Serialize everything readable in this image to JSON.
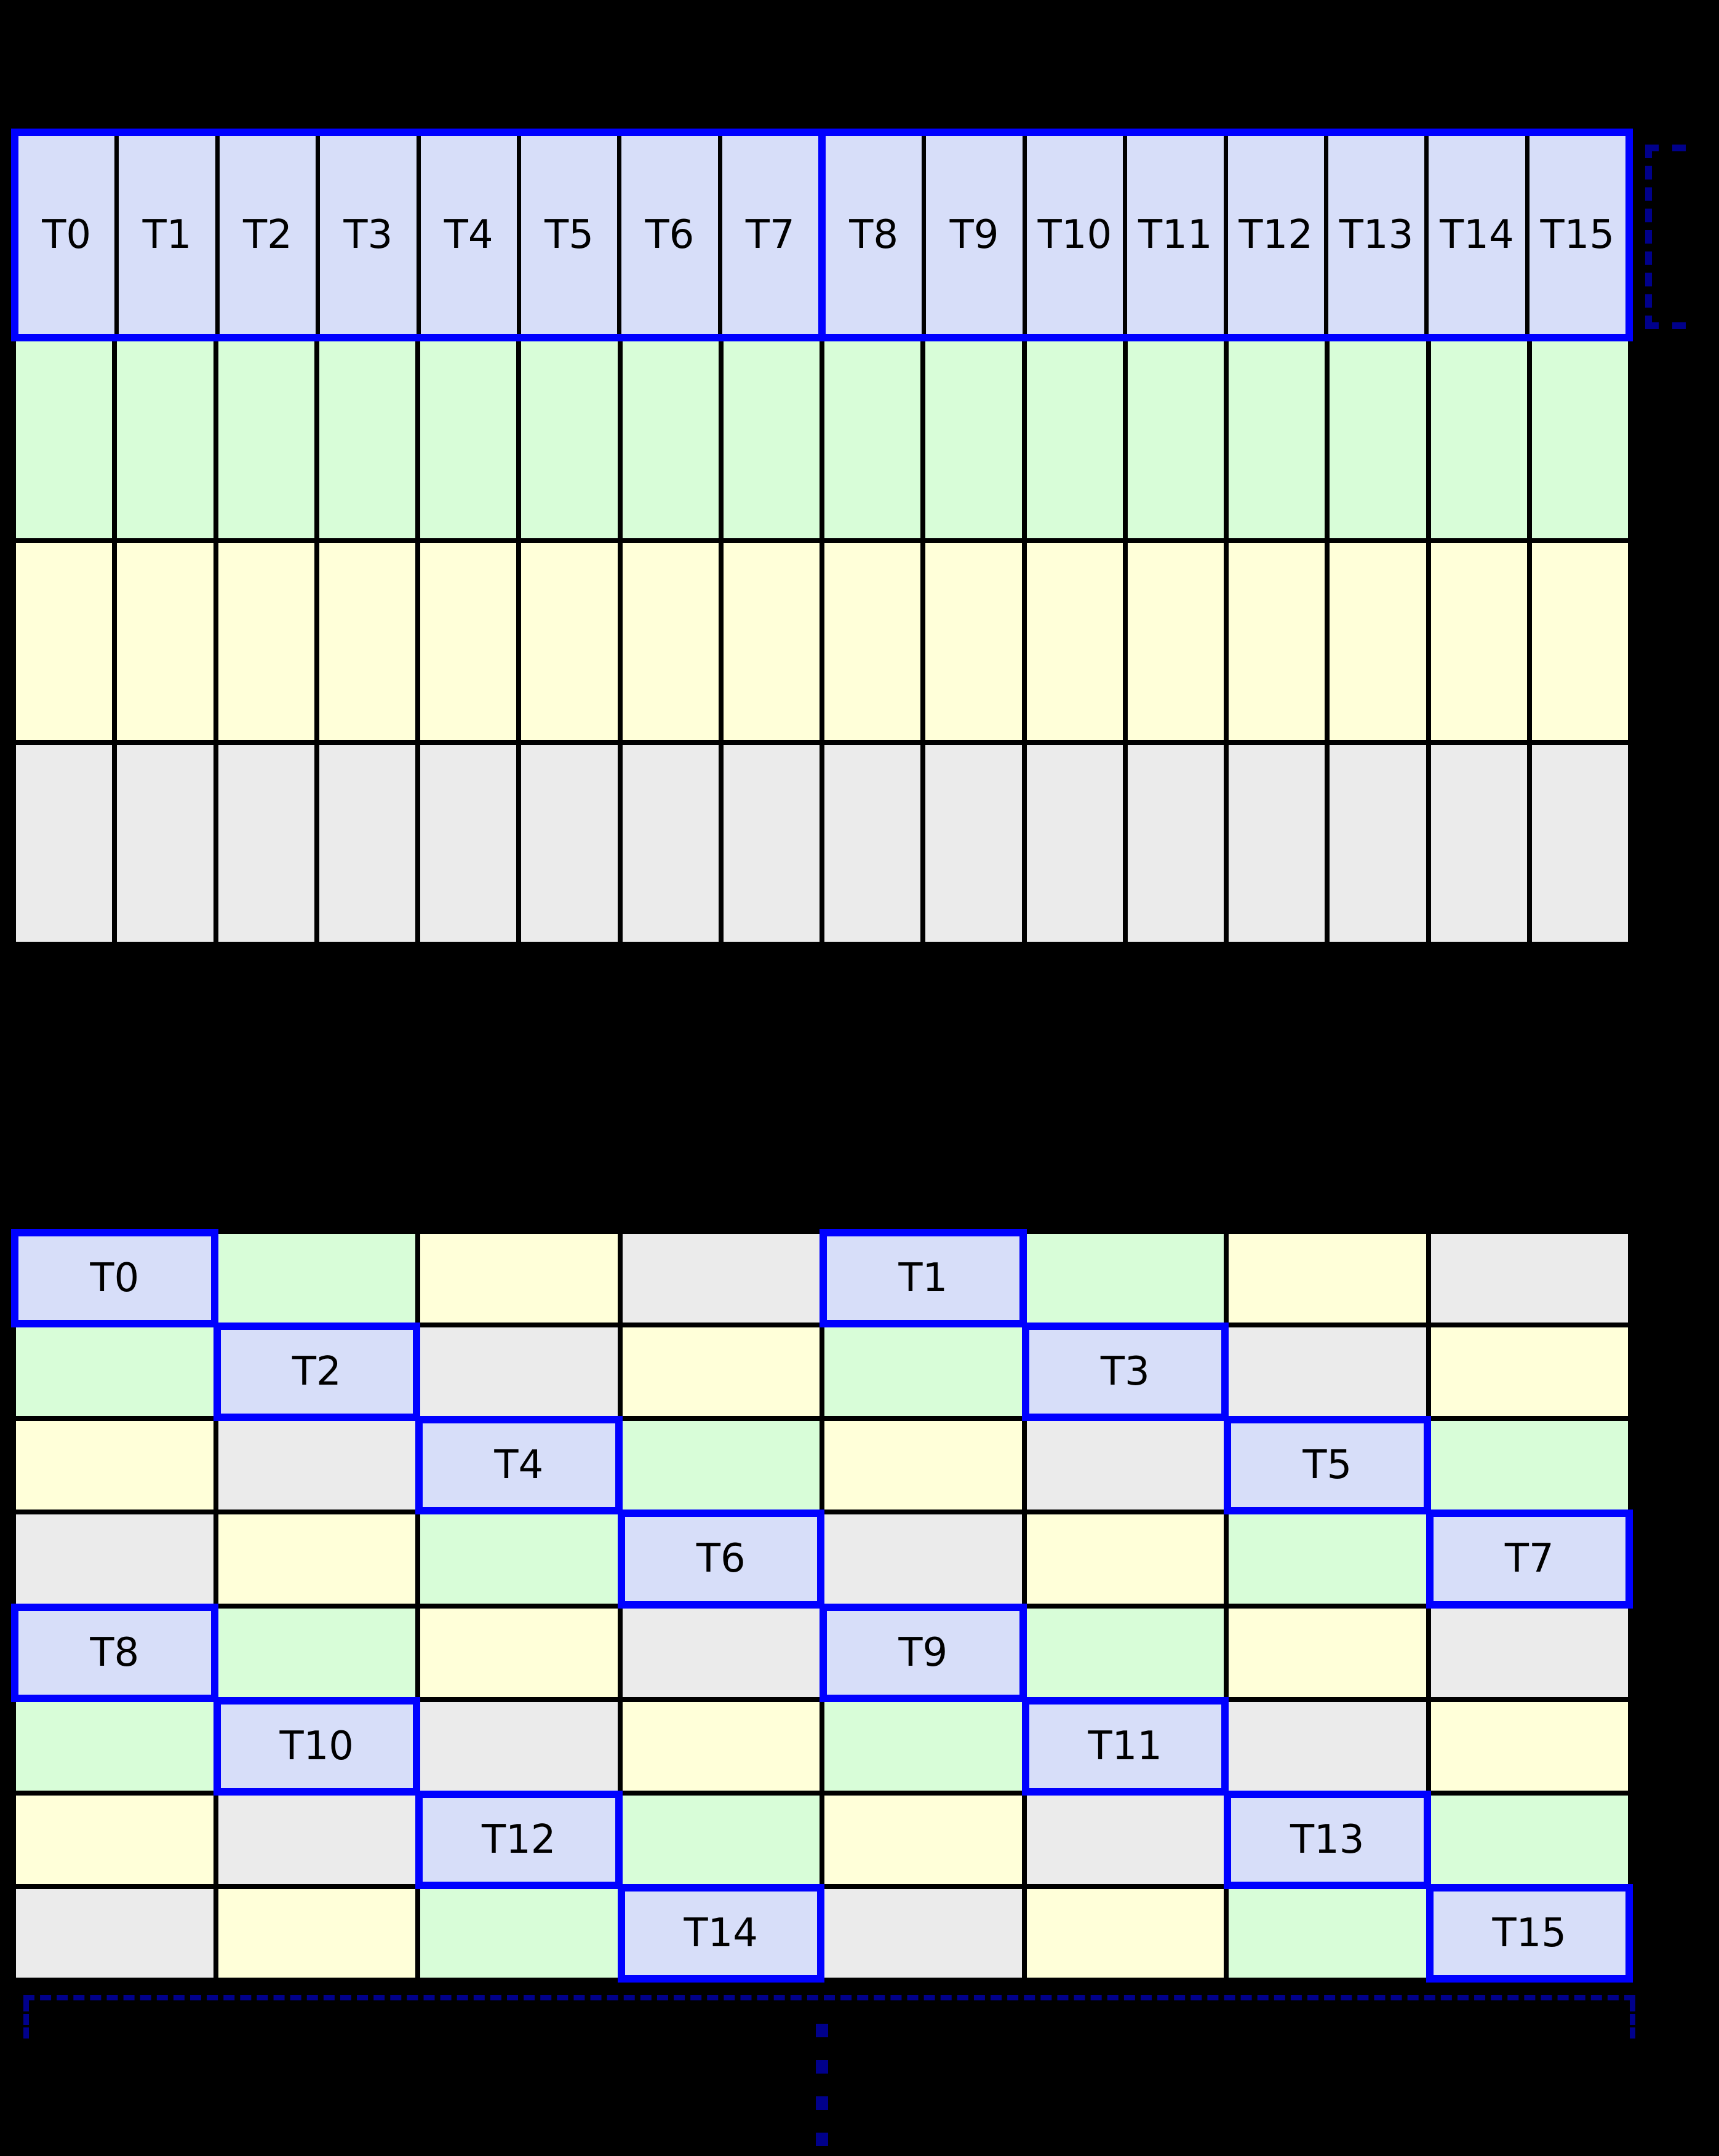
{
  "colors": {
    "background": "#000000",
    "thread_cell_lavender": "#D7DEF9",
    "green_cell": "#D8FDD8",
    "yellow_cell": "#FFFFD9",
    "gray_cell": "#EBEBEB",
    "warp_border_blue": "#0000FF",
    "bracket_dashed_navy": "#00008B",
    "grid_line": "#000000",
    "label_text": "#000000"
  },
  "top_table": {
    "columns": 16,
    "rows": 4,
    "row_fills": [
      "lavender-threads",
      "green",
      "yellow",
      "gray"
    ],
    "warp_groups": [
      [
        "T0",
        "T7"
      ],
      [
        "T8",
        "T15"
      ]
    ],
    "labels": [
      "T0",
      "T1",
      "T2",
      "T3",
      "T4",
      "T5",
      "T6",
      "T7",
      "T8",
      "T9",
      "T10",
      "T11",
      "T12",
      "T13",
      "T14",
      "T15"
    ]
  },
  "bottom_table": {
    "columns": 8,
    "rows": 8,
    "labels": [
      "T0",
      "T1",
      "T2",
      "T3",
      "T4",
      "T5",
      "T6",
      "T7",
      "T8",
      "T9",
      "T10",
      "T11",
      "T12",
      "T13",
      "T14",
      "T15"
    ],
    "thread_positions": {
      "T0": [
        0,
        0
      ],
      "T1": [
        0,
        4
      ],
      "T2": [
        1,
        1
      ],
      "T3": [
        1,
        5
      ],
      "T4": [
        2,
        2
      ],
      "T5": [
        2,
        6
      ],
      "T6": [
        3,
        3
      ],
      "T7": [
        3,
        7
      ],
      "T8": [
        4,
        0
      ],
      "T9": [
        4,
        4
      ],
      "T10": [
        5,
        1
      ],
      "T11": [
        5,
        5
      ],
      "T12": [
        6,
        2
      ],
      "T13": [
        6,
        6
      ],
      "T14": [
        7,
        3
      ],
      "T15": [
        7,
        7
      ]
    },
    "row_color_cycles": [
      "L G Y X L G Y X",
      "G L X Y G L X Y",
      "Y X L G Y X L G",
      "X Y G L X Y G L",
      "L G Y X L G Y X",
      "G L X Y G L X Y",
      "Y X L G Y X L G",
      "X Y G L X Y G L"
    ]
  },
  "annotations": {
    "warp_bracket_icon": "dashed-bracket-right-of-warp-row",
    "row_bracket_icon": "dashed-bracket-below-grid",
    "continuation_icon": "vertical-dashed-ellipsis"
  }
}
